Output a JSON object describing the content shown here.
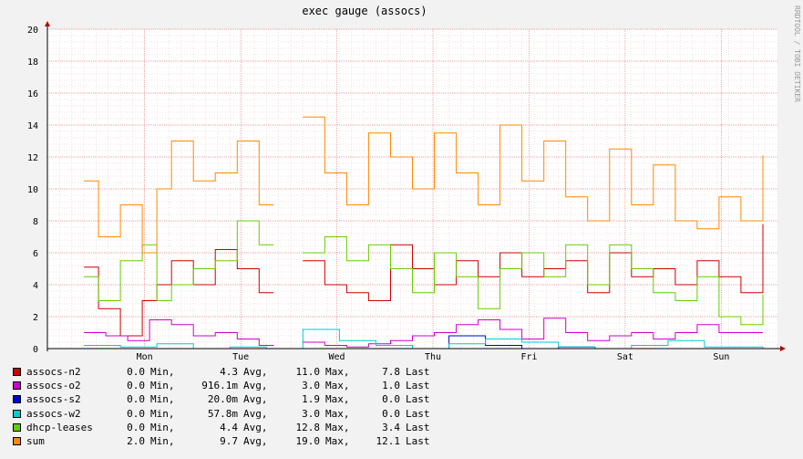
{
  "chart_data": {
    "type": "line",
    "title": "exec gauge (assocs)",
    "watermark": "RRDTOOL / TOBI OETIKER",
    "ylim": [
      0,
      20
    ],
    "yticks": [
      "0",
      "2",
      "4",
      "6",
      "8",
      "10",
      "12",
      "14",
      "16",
      "18",
      "20"
    ],
    "xlim": [
      0,
      1
    ],
    "xticks": [
      {
        "label": "Mon",
        "x": 0.1331
      },
      {
        "label": "Tue",
        "x": 0.2648
      },
      {
        "label": "Wed",
        "x": 0.3964
      },
      {
        "label": "Thu",
        "x": 0.5281
      },
      {
        "label": "Fri",
        "x": 0.6598
      },
      {
        "label": "Sat",
        "x": 0.7914
      },
      {
        "label": "Sun",
        "x": 0.9231
      }
    ],
    "grid": true,
    "series": [
      {
        "name": "assocs-n2",
        "color": "#cc0000",
        "x": [
          0.05,
          0.07,
          0.1,
          0.13,
          0.15,
          0.17,
          0.2,
          0.23,
          0.26,
          0.29,
          0.32,
          0.35,
          0.38,
          0.41,
          0.44,
          0.47,
          0.5,
          0.53,
          0.56,
          0.59,
          0.62,
          0.65,
          0.68,
          0.71,
          0.74,
          0.77,
          0.8,
          0.83,
          0.86,
          0.89,
          0.92,
          0.95,
          0.98
        ],
        "y": [
          5.1,
          2.5,
          0.8,
          3.0,
          4.0,
          5.5,
          4.0,
          6.2,
          5.0,
          3.5,
          null,
          5.5,
          4.0,
          3.5,
          3.0,
          6.5,
          5.0,
          4.0,
          5.5,
          4.5,
          6.0,
          4.5,
          5.0,
          5.5,
          3.5,
          6.0,
          4.5,
          5.0,
          4.0,
          5.5,
          4.5,
          3.5,
          7.8
        ]
      },
      {
        "name": "assocs-o2",
        "color": "#cc00cc",
        "x": [
          0.05,
          0.08,
          0.11,
          0.14,
          0.17,
          0.2,
          0.23,
          0.26,
          0.29,
          0.32,
          0.35,
          0.38,
          0.41,
          0.44,
          0.47,
          0.5,
          0.53,
          0.56,
          0.59,
          0.62,
          0.65,
          0.68,
          0.71,
          0.74,
          0.77,
          0.8,
          0.83,
          0.86,
          0.89,
          0.92,
          0.95,
          0.98
        ],
        "y": [
          1.0,
          0.8,
          0.5,
          1.8,
          1.5,
          0.8,
          1.0,
          0.6,
          0.2,
          null,
          0.4,
          0.2,
          0.1,
          0.3,
          0.5,
          0.8,
          1.0,
          1.5,
          1.8,
          1.2,
          0.6,
          1.9,
          1.0,
          0.5,
          0.8,
          1.0,
          0.6,
          1.0,
          1.5,
          1.0,
          1.0,
          1.0
        ]
      },
      {
        "name": "assocs-s2",
        "color": "#0000cc",
        "x": [
          0.05,
          0.15,
          0.25,
          0.35,
          0.42,
          0.5,
          0.55,
          0.6,
          0.65,
          0.7,
          0.75,
          0.8,
          0.85,
          0.9,
          0.98
        ],
        "y": [
          0.0,
          0.0,
          0.0,
          0.0,
          0.0,
          0.0,
          0.8,
          0.2,
          0.0,
          0.1,
          0.0,
          0.0,
          0.0,
          0.0,
          0.0
        ]
      },
      {
        "name": "assocs-w2",
        "color": "#00cccc",
        "x": [
          0.05,
          0.1,
          0.15,
          0.2,
          0.25,
          0.3,
          0.35,
          0.4,
          0.45,
          0.5,
          0.55,
          0.6,
          0.65,
          0.7,
          0.75,
          0.8,
          0.85,
          0.9,
          0.98
        ],
        "y": [
          0.2,
          0.1,
          0.3,
          0.0,
          0.1,
          0.0,
          1.2,
          0.5,
          0.2,
          0.0,
          0.3,
          0.6,
          0.4,
          0.1,
          0.0,
          0.2,
          0.5,
          0.1,
          0.0
        ]
      },
      {
        "name": "dhcp-leases",
        "color": "#66cc00",
        "x": [
          0.05,
          0.07,
          0.1,
          0.13,
          0.15,
          0.17,
          0.2,
          0.23,
          0.26,
          0.29,
          0.32,
          0.35,
          0.38,
          0.41,
          0.44,
          0.47,
          0.5,
          0.53,
          0.56,
          0.59,
          0.62,
          0.65,
          0.68,
          0.71,
          0.74,
          0.77,
          0.8,
          0.83,
          0.86,
          0.89,
          0.92,
          0.95,
          0.98
        ],
        "y": [
          4.5,
          3.0,
          5.5,
          6.5,
          3.0,
          4.0,
          5.0,
          5.5,
          8.0,
          6.5,
          null,
          6.0,
          7.0,
          5.5,
          6.5,
          5.0,
          3.5,
          6.0,
          4.5,
          2.5,
          5.0,
          6.0,
          4.5,
          6.5,
          4.0,
          6.5,
          5.0,
          3.5,
          3.0,
          4.5,
          2.0,
          1.5,
          3.4
        ]
      },
      {
        "name": "sum",
        "color": "#ff8800",
        "x": [
          0.05,
          0.07,
          0.1,
          0.13,
          0.15,
          0.17,
          0.2,
          0.23,
          0.26,
          0.29,
          0.32,
          0.35,
          0.38,
          0.41,
          0.44,
          0.47,
          0.5,
          0.53,
          0.56,
          0.59,
          0.62,
          0.65,
          0.68,
          0.71,
          0.74,
          0.77,
          0.8,
          0.83,
          0.86,
          0.89,
          0.92,
          0.95,
          0.98
        ],
        "y": [
          10.5,
          7.0,
          9.0,
          6.0,
          10.0,
          13.0,
          10.5,
          11.0,
          13.0,
          9.0,
          null,
          14.5,
          11.0,
          9.0,
          13.5,
          12.0,
          10.0,
          13.5,
          11.0,
          9.0,
          14.0,
          10.5,
          13.0,
          9.5,
          8.0,
          12.5,
          9.0,
          11.5,
          8.0,
          7.5,
          9.5,
          8.0,
          12.1
        ]
      }
    ]
  },
  "legend": [
    {
      "name": "assocs-n2",
      "color": "#cc0000",
      "min": "0.0",
      "avg": "4.3",
      "max": "11.0",
      "last": "7.8"
    },
    {
      "name": "assocs-o2",
      "color": "#cc00cc",
      "min": "0.0",
      "avg": "916.1m",
      "max": "3.0",
      "last": "1.0"
    },
    {
      "name": "assocs-s2",
      "color": "#0000cc",
      "min": "0.0",
      "avg": "20.0m",
      "max": "1.9",
      "last": "0.0"
    },
    {
      "name": "assocs-w2",
      "color": "#00cccc",
      "min": "0.0",
      "avg": "57.8m",
      "max": "3.0",
      "last": "0.0"
    },
    {
      "name": "dhcp-leases",
      "color": "#66cc00",
      "min": "0.0",
      "avg": "4.4",
      "max": "12.8",
      "last": "3.4"
    },
    {
      "name": "sum",
      "color": "#ff8800",
      "min": "2.0",
      "avg": "9.7",
      "max": "19.0",
      "last": "12.1"
    }
  ],
  "legend_labels": {
    "min": "Min,",
    "avg": "Avg,",
    "max": "Max,",
    "last": "Last"
  }
}
